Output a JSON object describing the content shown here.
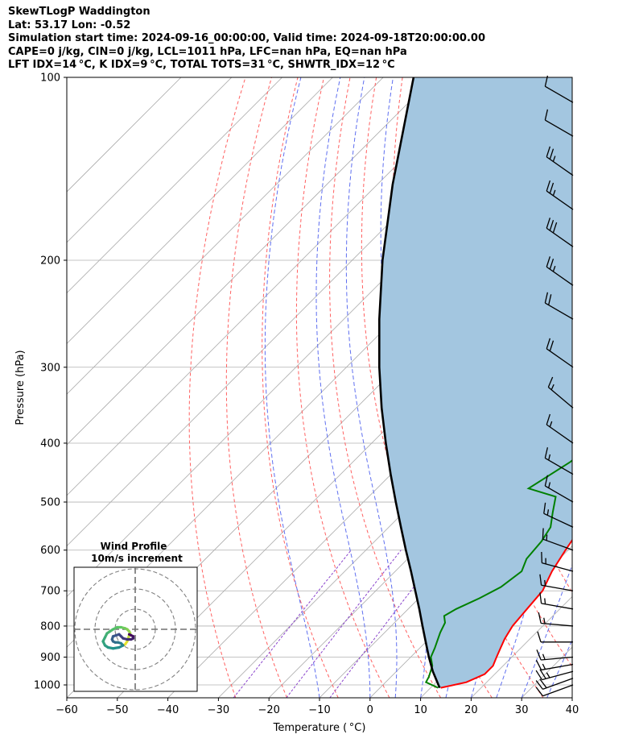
{
  "header": {
    "line1": "SkewTLogP Waddington",
    "line2": "Lat: 53.17   Lon: -0.52",
    "line3": "Simulation start time: 2024-09-16_00:00:00, Valid time: 2024-09-18T20:00:00.00",
    "line4": "CAPE=0 j/kg, CIN=0 j/kg, LCL=1011 hPa, LFC=nan hPa, EQ=nan hPa",
    "line5": "LFT IDX=14 °C, K IDX=9 °C, TOTAL TOTS=31 °C, SHWTR_IDX=12 °C"
  },
  "colors": {
    "temperature": "#ff0000",
    "dewpoint": "#008000",
    "parcel": "#000000",
    "shade": "#a3c6e0",
    "dry_adiabat": "#ff6060",
    "moist_adiabat": "#5f6ff0",
    "mixing_ratio": "#8a44cc",
    "isotherm": "#aaaaaa",
    "grid": "#b0b0b0"
  },
  "chart_data": {
    "type": "line",
    "xlabel": "Temperature ( °C)",
    "ylabel": "Pressure (hPa)",
    "xlim": [
      -60,
      40
    ],
    "ylim": [
      1050,
      100
    ],
    "yscale": "log",
    "xticks": [
      "−60",
      "−50",
      "−40",
      "−30",
      "−20",
      "−10",
      "0",
      "10",
      "20",
      "30",
      "40"
    ],
    "yticks": [
      "100",
      "200",
      "300",
      "400",
      "500",
      "600",
      "700",
      "800",
      "900",
      "1000"
    ],
    "grid": true,
    "series": [
      {
        "name": "temperature",
        "points": [
          [
            1011,
            12
          ],
          [
            990,
            16
          ],
          [
            960,
            18
          ],
          [
            930,
            18
          ],
          [
            900,
            17
          ],
          [
            870,
            16
          ],
          [
            840,
            15
          ],
          [
            800,
            14
          ],
          [
            750,
            13.5
          ],
          [
            700,
            13
          ],
          [
            650,
            11
          ],
          [
            600,
            9.5
          ],
          [
            550,
            8
          ],
          [
            510,
            7.5
          ],
          [
            480,
            6
          ],
          [
            450,
            4.5
          ],
          [
            420,
            3
          ],
          [
            380,
            0
          ],
          [
            340,
            -3
          ],
          [
            300,
            -5.5
          ],
          [
            270,
            -7.5
          ],
          [
            240,
            -8.5
          ],
          [
            210,
            -9.5
          ],
          [
            185,
            -10
          ],
          [
            165,
            -9
          ],
          [
            150,
            -8
          ],
          [
            140,
            -6.5
          ],
          [
            130,
            -4
          ],
          [
            120,
            -1.5
          ],
          [
            110,
            0.5
          ],
          [
            100,
            2
          ]
        ]
      },
      {
        "name": "dewpoint",
        "points": [
          [
            1011,
            11.5
          ],
          [
            990,
            8
          ],
          [
            970,
            7.5
          ],
          [
            930,
            6
          ],
          [
            900,
            4
          ],
          [
            870,
            3
          ],
          [
            820,
            1
          ],
          [
            790,
            0
          ],
          [
            770,
            -1.5
          ],
          [
            750,
            -0.5
          ],
          [
            720,
            2
          ],
          [
            690,
            4
          ],
          [
            650,
            5
          ],
          [
            620,
            3.5
          ],
          [
            580,
            3
          ],
          [
            550,
            2
          ],
          [
            520,
            -0.5
          ],
          [
            490,
            -3
          ],
          [
            475,
            -10
          ],
          [
            430,
            -7
          ],
          [
            400,
            -6
          ],
          [
            360,
            -6.5
          ],
          [
            330,
            -6.5
          ],
          [
            300,
            -6.5
          ],
          [
            280,
            -10
          ],
          [
            260,
            -14
          ],
          [
            240,
            -15.5
          ],
          [
            210,
            -17
          ],
          [
            190,
            -18
          ],
          [
            170,
            -17
          ],
          [
            150,
            -16.5
          ],
          [
            135,
            -17
          ],
          [
            120,
            -16
          ],
          [
            110,
            -14
          ],
          [
            100,
            -11
          ]
        ]
      },
      {
        "name": "parcel",
        "points": [
          [
            1011,
            11.8
          ],
          [
            950,
            7.2
          ],
          [
            900,
            3.6
          ],
          [
            850,
            0
          ],
          [
            800,
            -3.8
          ],
          [
            750,
            -7.8
          ],
          [
            700,
            -12.2
          ],
          [
            650,
            -16.9
          ],
          [
            600,
            -22.1
          ],
          [
            550,
            -27.6
          ],
          [
            500,
            -33.6
          ],
          [
            450,
            -40.1
          ],
          [
            400,
            -47.2
          ],
          [
            350,
            -55
          ],
          [
            300,
            -63.5
          ],
          [
            250,
            -73
          ],
          [
            200,
            -84
          ],
          [
            150,
            -97
          ],
          [
            100,
            -114
          ]
        ]
      }
    ],
    "wind_barbs": [
      {
        "p": 1000,
        "speed_kt": 10,
        "dir": 250
      },
      {
        "p": 975,
        "speed_kt": 20,
        "dir": 250
      },
      {
        "p": 950,
        "speed_kt": 25,
        "dir": 255
      },
      {
        "p": 925,
        "speed_kt": 15,
        "dir": 260
      },
      {
        "p": 900,
        "speed_kt": 15,
        "dir": 265
      },
      {
        "p": 850,
        "speed_kt": 10,
        "dir": 270
      },
      {
        "p": 800,
        "speed_kt": 15,
        "dir": 275
      },
      {
        "p": 750,
        "speed_kt": 15,
        "dir": 280
      },
      {
        "p": 700,
        "speed_kt": 15,
        "dir": 280
      },
      {
        "p": 650,
        "speed_kt": 15,
        "dir": 285
      },
      {
        "p": 600,
        "speed_kt": 15,
        "dir": 290
      },
      {
        "p": 550,
        "speed_kt": 15,
        "dir": 295
      },
      {
        "p": 500,
        "speed_kt": 15,
        "dir": 300
      },
      {
        "p": 450,
        "speed_kt": 15,
        "dir": 300
      },
      {
        "p": 400,
        "speed_kt": 15,
        "dir": 305
      },
      {
        "p": 350,
        "speed_kt": 15,
        "dir": 310
      },
      {
        "p": 300,
        "speed_kt": 20,
        "dir": 305
      },
      {
        "p": 250,
        "speed_kt": 20,
        "dir": 300
      },
      {
        "p": 220,
        "speed_kt": 25,
        "dir": 305
      },
      {
        "p": 190,
        "speed_kt": 30,
        "dir": 305
      },
      {
        "p": 165,
        "speed_kt": 25,
        "dir": 305
      },
      {
        "p": 145,
        "speed_kt": 25,
        "dir": 305
      },
      {
        "p": 125,
        "speed_kt": 10,
        "dir": 300
      },
      {
        "p": 110,
        "speed_kt": 10,
        "dir": 300
      }
    ],
    "hodograph": {
      "title": "Wind Profile",
      "subtitle": "10m/s increment",
      "points": [
        [
          -6,
          -8
        ],
        [
          -5,
          -7.5
        ],
        [
          -4,
          -6
        ],
        [
          -3.5,
          -4.5
        ],
        [
          -3,
          -3
        ],
        [
          -2.5,
          -2
        ],
        [
          -3,
          -1
        ],
        [
          -4,
          0
        ],
        [
          -5,
          0.5
        ],
        [
          -7,
          1
        ],
        [
          -9,
          1
        ],
        [
          -11,
          0
        ],
        [
          -12.5,
          -1
        ],
        [
          -14,
          -2
        ],
        [
          -15,
          -4
        ],
        [
          -16,
          -6
        ],
        [
          -15,
          -8
        ],
        [
          -13.5,
          -9
        ],
        [
          -11,
          -9.5
        ],
        [
          -8,
          -9
        ],
        [
          -6,
          -8
        ],
        [
          -7,
          -7
        ],
        [
          -8.5,
          -6.5
        ],
        [
          -10,
          -6.5
        ],
        [
          -11,
          -6
        ],
        [
          -11.5,
          -5
        ],
        [
          -11,
          -3.5
        ],
        [
          -9.5,
          -3
        ],
        [
          -8,
          -2.5
        ],
        [
          -7,
          -3.5
        ],
        [
          -6,
          -4.5
        ],
        [
          -4,
          -5
        ],
        [
          -2,
          -5
        ],
        [
          -1,
          -4.5
        ],
        [
          -1,
          -3.5
        ],
        [
          -2,
          -3
        ],
        [
          -3,
          -2.5
        ]
      ]
    }
  }
}
